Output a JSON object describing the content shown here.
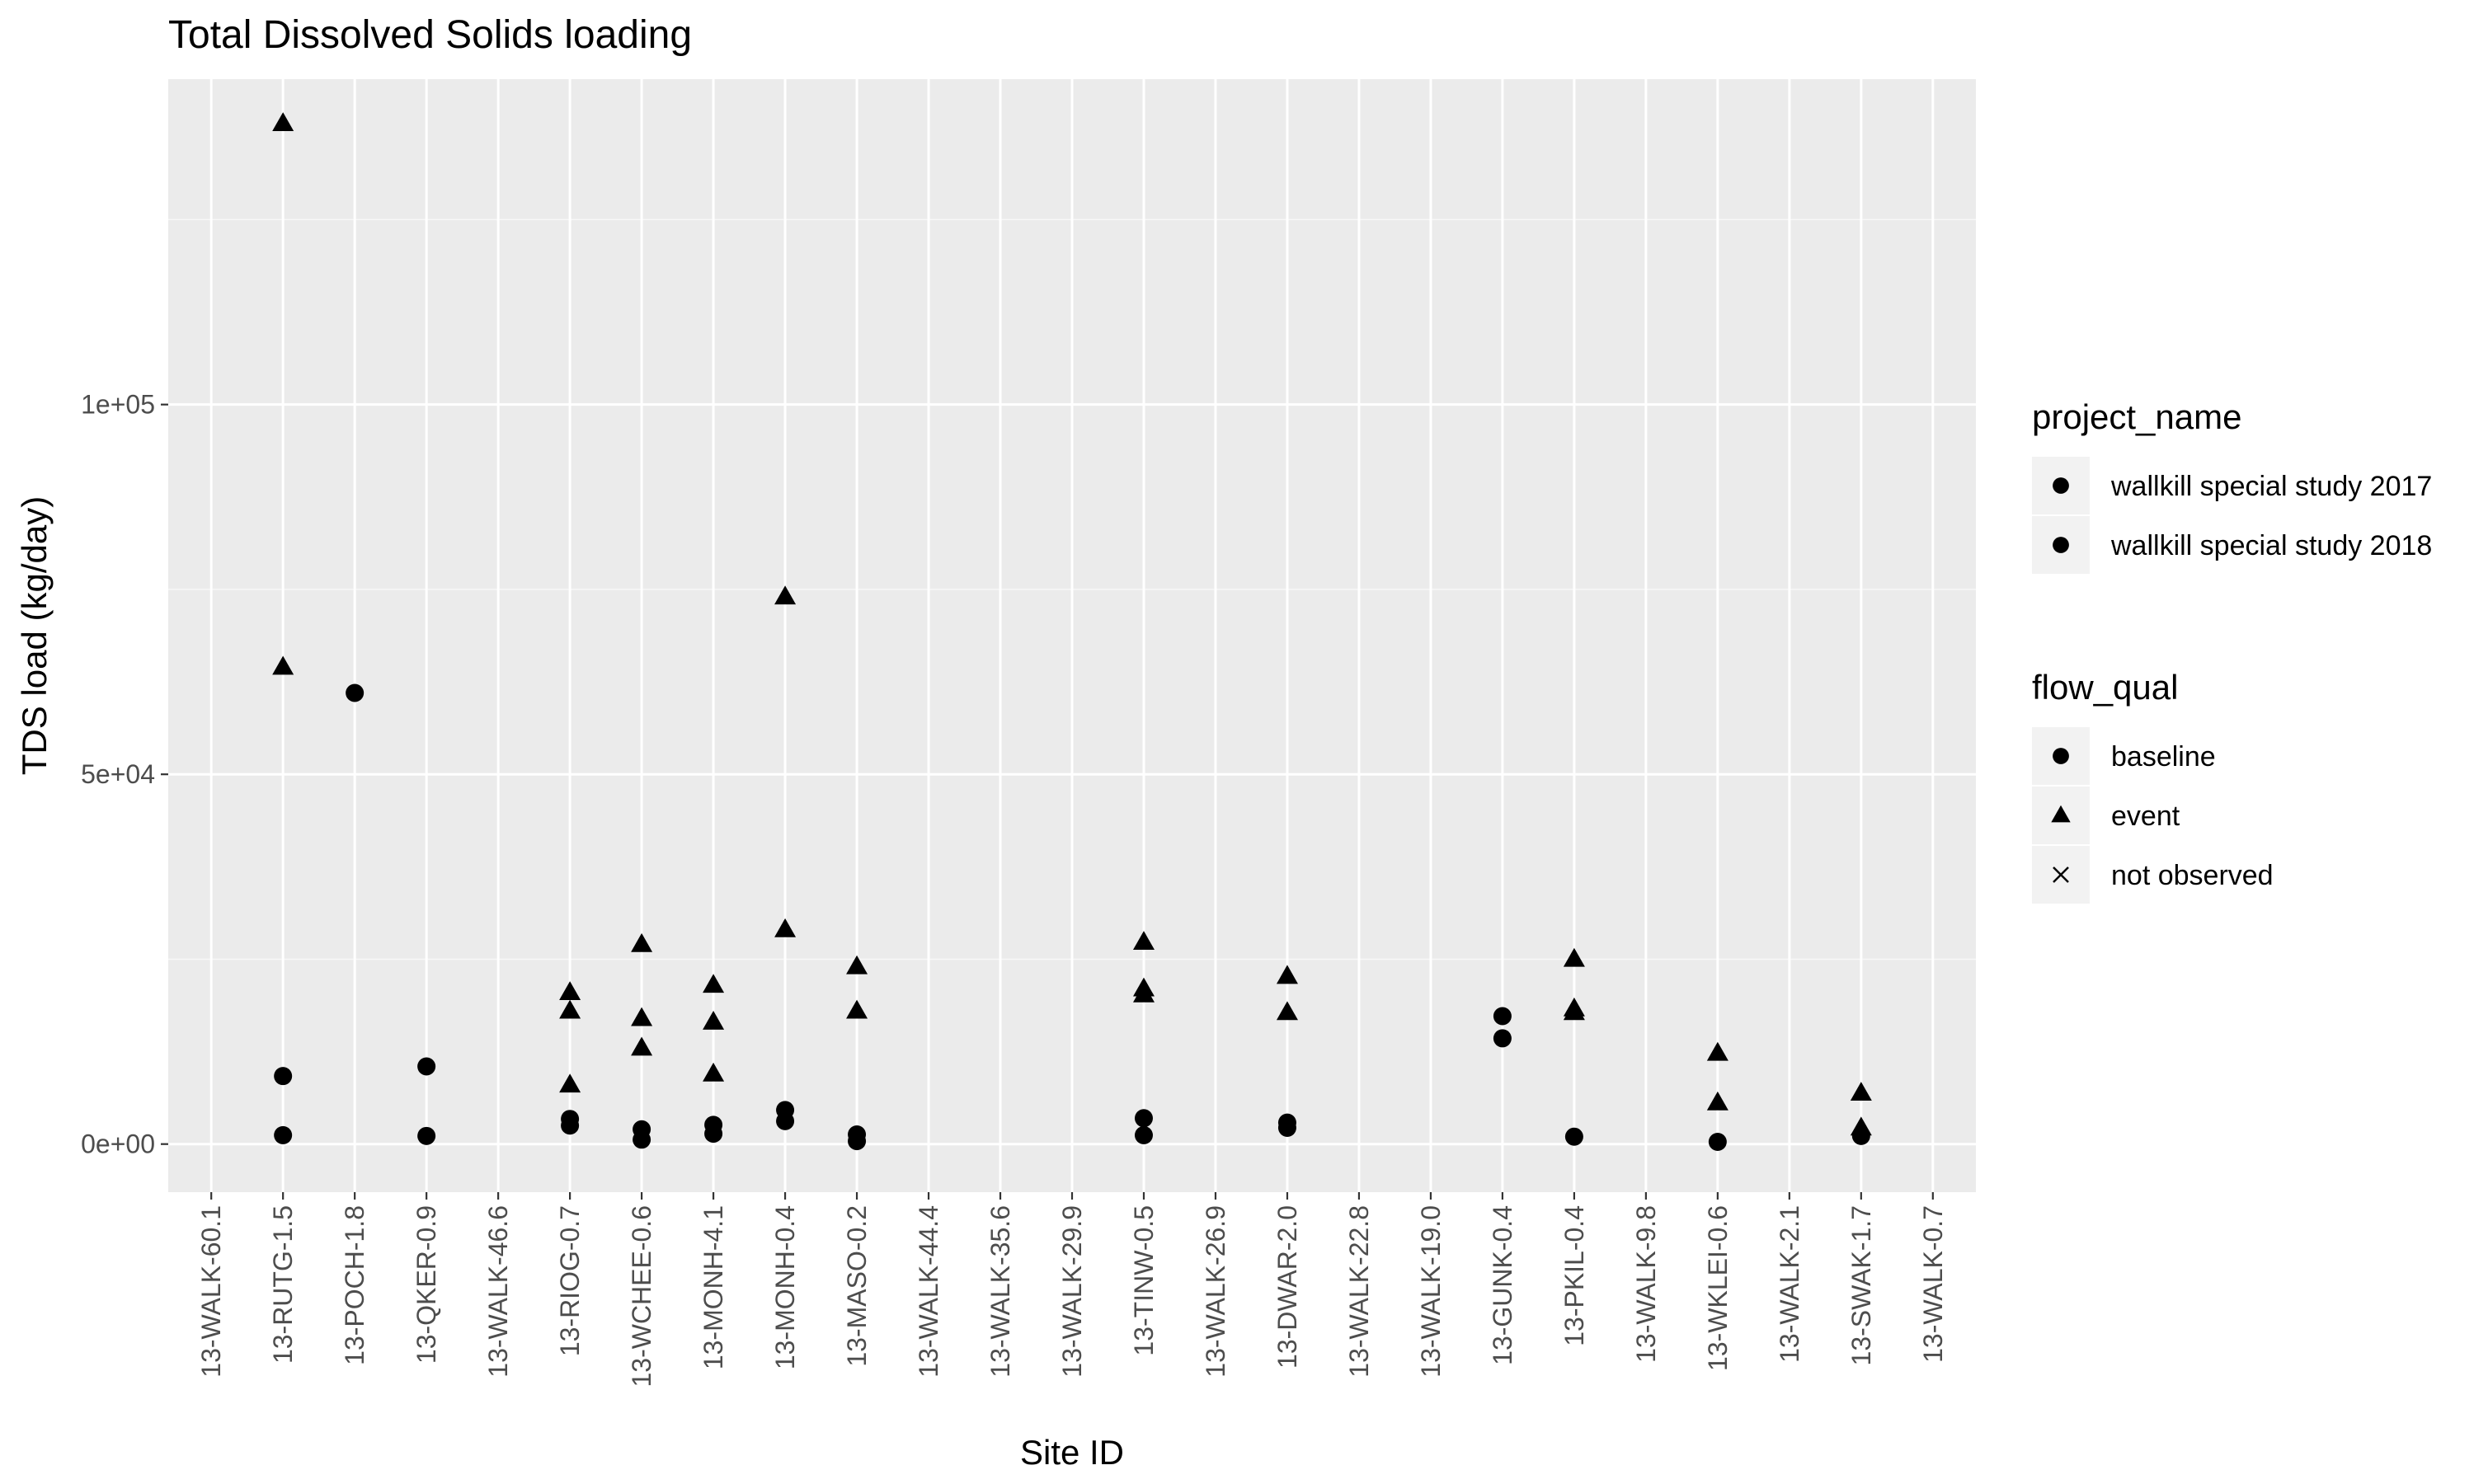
{
  "chart_data": {
    "type": "scatter",
    "title": "Total Dissolved Solids loading",
    "xlabel": "Site ID",
    "ylabel": "TDS load (kg/day)",
    "categories": [
      "13-WALK-60.1",
      "13-RUTG-1.5",
      "13-POCH-1.8",
      "13-QKER-0.9",
      "13-WALK-46.6",
      "13-RIOG-0.7",
      "13-WCHEE-0.6",
      "13-MONH-4.1",
      "13-MONH-0.4",
      "13-MASO-0.2",
      "13-WALK-44.4",
      "13-WALK-35.6",
      "13-WALK-29.9",
      "13-TINW-0.5",
      "13-WALK-26.9",
      "13-DWAR-2.0",
      "13-WALK-22.8",
      "13-WALK-19.0",
      "13-GUNK-0.4",
      "13-PKIL-0.4",
      "13-WALK-9.8",
      "13-WKLEI-0.6",
      "13-WALK-2.1",
      "13-SWAK-1.7",
      "13-WALK-0.7"
    ],
    "y_ticks": [
      0,
      50000,
      100000
    ],
    "y_tick_labels": [
      "0e+00",
      "5e+04",
      "1e+05"
    ],
    "ylim": [
      -6500,
      144000
    ],
    "grid": true,
    "legend_position": "right",
    "legends": [
      {
        "title": "project_name",
        "entries": [
          {
            "label": "wallkill special study 2017",
            "shape": "circle"
          },
          {
            "label": "wallkill special study 2018",
            "shape": "circle"
          }
        ]
      },
      {
        "title": "flow_qual",
        "entries": [
          {
            "label": "baseline",
            "shape": "circle"
          },
          {
            "label": "event",
            "shape": "triangle"
          },
          {
            "label": "not observed",
            "shape": "cross"
          }
        ]
      }
    ],
    "series": [
      {
        "name": "baseline",
        "shape": "circle",
        "points": [
          {
            "x": "13-RUTG-1.5",
            "y": 9200
          },
          {
            "x": "13-RUTG-1.5",
            "y": 1200
          },
          {
            "x": "13-POCH-1.8",
            "y": 61000
          },
          {
            "x": "13-QKER-0.9",
            "y": 10500
          },
          {
            "x": "13-QKER-0.9",
            "y": 1100
          },
          {
            "x": "13-RIOG-0.7",
            "y": 3400
          },
          {
            "x": "13-RIOG-0.7",
            "y": 2500
          },
          {
            "x": "13-WCHEE-0.6",
            "y": 2000
          },
          {
            "x": "13-WCHEE-0.6",
            "y": 600
          },
          {
            "x": "13-MONH-4.1",
            "y": 2600
          },
          {
            "x": "13-MONH-4.1",
            "y": 1400
          },
          {
            "x": "13-MONH-0.4",
            "y": 4600
          },
          {
            "x": "13-MONH-0.4",
            "y": 3100
          },
          {
            "x": "13-MASO-0.2",
            "y": 1300
          },
          {
            "x": "13-MASO-0.2",
            "y": 400
          },
          {
            "x": "13-TINW-0.5",
            "y": 3500
          },
          {
            "x": "13-TINW-0.5",
            "y": 1200
          },
          {
            "x": "13-DWAR-2.0",
            "y": 2900
          },
          {
            "x": "13-DWAR-2.0",
            "y": 2200
          },
          {
            "x": "13-GUNK-0.4",
            "y": 17300
          },
          {
            "x": "13-GUNK-0.4",
            "y": 14300
          },
          {
            "x": "13-PKIL-0.4",
            "y": 1000
          },
          {
            "x": "13-WKLEI-0.6",
            "y": 300
          },
          {
            "x": "13-SWAK-1.7",
            "y": 1100
          }
        ]
      },
      {
        "name": "event",
        "shape": "triangle",
        "points": [
          {
            "x": "13-RUTG-1.5",
            "y": 138000
          },
          {
            "x": "13-RUTG-1.5",
            "y": 64500
          },
          {
            "x": "13-RIOG-0.7",
            "y": 20500
          },
          {
            "x": "13-RIOG-0.7",
            "y": 18000
          },
          {
            "x": "13-RIOG-0.7",
            "y": 8000
          },
          {
            "x": "13-WCHEE-0.6",
            "y": 27000
          },
          {
            "x": "13-WCHEE-0.6",
            "y": 17000
          },
          {
            "x": "13-WCHEE-0.6",
            "y": 13000
          },
          {
            "x": "13-MONH-4.1",
            "y": 21500
          },
          {
            "x": "13-MONH-4.1",
            "y": 16500
          },
          {
            "x": "13-MONH-4.1",
            "y": 9500
          },
          {
            "x": "13-MONH-0.4",
            "y": 74000
          },
          {
            "x": "13-MONH-0.4",
            "y": 29000
          },
          {
            "x": "13-MASO-0.2",
            "y": 24000
          },
          {
            "x": "13-MASO-0.2",
            "y": 18000
          },
          {
            "x": "13-TINW-0.5",
            "y": 27300
          },
          {
            "x": "13-TINW-0.5",
            "y": 21000
          },
          {
            "x": "13-TINW-0.5",
            "y": 20200
          },
          {
            "x": "13-DWAR-2.0",
            "y": 22700
          },
          {
            "x": "13-DWAR-2.0",
            "y": 17800
          },
          {
            "x": "13-PKIL-0.4",
            "y": 25000
          },
          {
            "x": "13-PKIL-0.4",
            "y": 18300
          },
          {
            "x": "13-PKIL-0.4",
            "y": 17800
          },
          {
            "x": "13-WKLEI-0.6",
            "y": 12300
          },
          {
            "x": "13-WKLEI-0.6",
            "y": 5600
          },
          {
            "x": "13-SWAK-1.7",
            "y": 6900
          },
          {
            "x": "13-SWAK-1.7",
            "y": 2200
          }
        ]
      }
    ]
  },
  "colors": {
    "panel_background": "#ebebeb",
    "grid_major": "#ffffff",
    "marker": "#000000",
    "legend_key_background": "#f2f2f2"
  }
}
